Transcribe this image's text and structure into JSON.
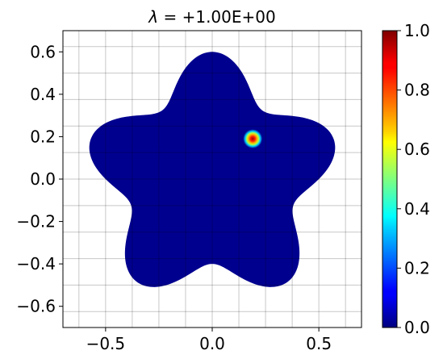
{
  "chart_data": {
    "type": "heatmap",
    "title_symbol": "λ",
    "title_eq": " = ",
    "title_value": "+1.00E+00",
    "xlim": [
      -0.7,
      0.7
    ],
    "ylim": [
      -0.7,
      0.7
    ],
    "x_ticks": [
      -0.5,
      0.0,
      0.5
    ],
    "x_tick_labels": [
      "−0.5",
      "0.0",
      "0.5"
    ],
    "y_ticks": [
      0.6,
      0.4,
      0.2,
      0.0,
      -0.2,
      -0.4,
      -0.6
    ],
    "y_tick_labels": [
      "0.6",
      "0.4",
      "0.2",
      "0.0",
      "−0.2",
      "−0.4",
      "−0.6"
    ],
    "grid": true,
    "grid_step": 0.125,
    "domain": {
      "shape": "five-lobed star",
      "radius_formula": "r = 0.5 + 0.1*sin(5*theta)",
      "lobes": 5,
      "mean_radius": 0.5,
      "lobe_amplitude": 0.1
    },
    "hotspot": {
      "center": [
        0.19,
        0.19
      ],
      "half_width": 0.045,
      "peak_value": 1.0
    },
    "background_value": 0.0,
    "colorbar": {
      "colormap": "jet",
      "min": 0.0,
      "max": 1.0,
      "tick_values": [
        1.0,
        0.8,
        0.6,
        0.4,
        0.2,
        0.0
      ],
      "tick_labels": [
        "1.0",
        "0.8",
        "0.6",
        "0.4",
        "0.2",
        "0.0"
      ]
    }
  }
}
